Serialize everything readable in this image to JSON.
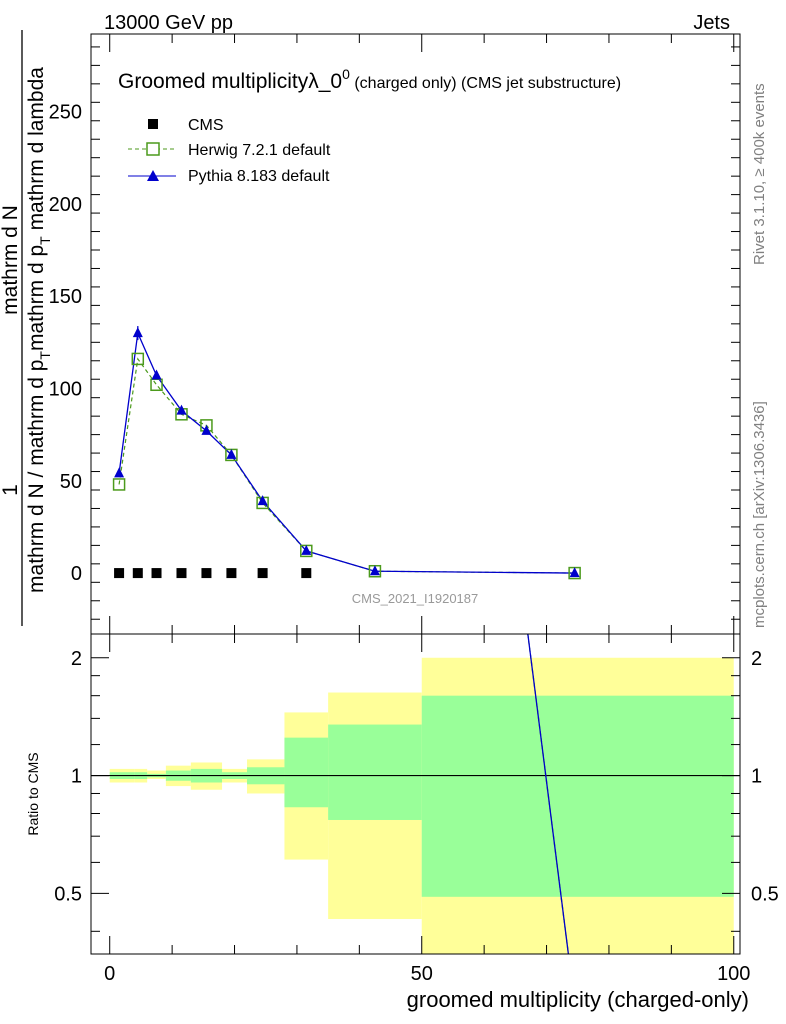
{
  "header": {
    "left": "13000 GeV pp",
    "right": "Jets"
  },
  "side_labels": {
    "rivet": "Rivet 3.1.10, ≥ 400k events",
    "mcplots": "mcplots.cern.ch [arXiv:1306.3436]"
  },
  "title": {
    "main": "Groomed multiplicityλ_0",
    "superscript": "0",
    "sub1": " (charged only)",
    "sub2": " (CMS jet substructure)"
  },
  "watermark": "CMS_2021_I1920187",
  "ylabel_main": {
    "prefix": "1",
    "line1": "mathrm d N / mathrm d p",
    "sub": "T",
    "line2": "mathrm d N",
    "line3": "mathrm d p",
    "sub2": "T",
    "line4": " mathrm d lambda"
  },
  "chart_data": [
    {
      "type": "line",
      "title": "Groomed multiplicityλ_0^0 (charged only) (CMS jet substructure)",
      "xlabel": "groomed multiplicity (charged-only)",
      "ylabel": "1/(mathrm d N / mathrm d p_T) mathrm d^2N / mathrm d p_T mathrm d lambda",
      "xlim": [
        -3,
        101
      ],
      "ylim": [
        -33,
        292
      ],
      "yticks": [
        0,
        50,
        100,
        150,
        200,
        250
      ],
      "legend_position": "top-left",
      "series": [
        {
          "name": "CMS",
          "color": "#000000",
          "marker": "square",
          "x": [
            1.5,
            4.5,
            7.5,
            11.5,
            15.5,
            19.5,
            24.5,
            31.5
          ],
          "y": [
            0,
            0,
            0,
            0,
            0,
            0,
            0,
            0
          ]
        },
        {
          "name": "Herwig 7.2.1 default",
          "color": "#4c9a1c",
          "marker": "open-square",
          "style": "dashed",
          "x": [
            1.5,
            4.5,
            7.5,
            11.5,
            15.5,
            19.5,
            24.5,
            31.5,
            42.5,
            74.5
          ],
          "y": [
            48,
            116,
            102,
            86,
            80,
            64,
            38,
            12,
            1,
            0
          ]
        },
        {
          "name": "Pythia 8.183 default",
          "color": "#0000cc",
          "marker": "triangle",
          "style": "solid",
          "x": [
            1.5,
            4.5,
            7.5,
            11.5,
            15.5,
            19.5,
            24.5,
            31.5,
            42.5,
            74.5
          ],
          "y": [
            54,
            130,
            107,
            88,
            77,
            64,
            39,
            12,
            1,
            0
          ]
        }
      ]
    },
    {
      "type": "area",
      "title": "",
      "xlabel": "groomed multiplicity (charged-only)",
      "ylabel": "Ratio to CMS",
      "xlim": [
        -3,
        101
      ],
      "ylim": [
        0.35,
        2.3
      ],
      "yticks": [
        0.5,
        1,
        2
      ],
      "xticks": [
        0,
        50,
        100
      ],
      "bins": [
        {
          "lo": 0,
          "hi": 4,
          "inner": [
            0.98,
            1.02
          ],
          "outer": [
            0.96,
            1.04
          ]
        },
        {
          "lo": 4,
          "hi": 6,
          "inner": [
            0.98,
            1.02
          ],
          "outer": [
            0.96,
            1.04
          ]
        },
        {
          "lo": 6,
          "hi": 9,
          "inner": [
            0.99,
            1.01
          ],
          "outer": [
            0.98,
            1.03
          ]
        },
        {
          "lo": 9,
          "hi": 13,
          "inner": [
            0.97,
            1.03
          ],
          "outer": [
            0.94,
            1.06
          ]
        },
        {
          "lo": 13,
          "hi": 18,
          "inner": [
            0.96,
            1.04
          ],
          "outer": [
            0.92,
            1.08
          ]
        },
        {
          "lo": 18,
          "hi": 22,
          "inner": [
            0.98,
            1.02
          ],
          "outer": [
            0.96,
            1.04
          ]
        },
        {
          "lo": 22,
          "hi": 28,
          "inner": [
            0.95,
            1.05
          ],
          "outer": [
            0.9,
            1.1
          ]
        },
        {
          "lo": 28,
          "hi": 35,
          "inner": [
            0.83,
            1.25
          ],
          "outer": [
            0.61,
            1.45
          ]
        },
        {
          "lo": 35,
          "hi": 50,
          "inner": [
            0.77,
            1.35
          ],
          "outer": [
            0.43,
            1.63
          ]
        },
        {
          "lo": 50,
          "hi": 100,
          "inner": [
            0.49,
            1.6
          ],
          "outer": [
            0.35,
            2.0
          ]
        }
      ],
      "reference_line": 1,
      "series": [
        {
          "name": "Herwig 7.2.1 default / CMS",
          "color": "#4c9a1c",
          "x": [
            67,
            73.5
          ],
          "y": [
            2.3,
            0.35
          ]
        },
        {
          "name": "Pythia 8.183 default / CMS",
          "color": "#0000cc",
          "x": [
            67,
            73.5
          ],
          "y": [
            2.3,
            0.35
          ]
        }
      ],
      "band_colors": {
        "inner": "#99ff99",
        "outer": "#ffff99"
      }
    }
  ]
}
